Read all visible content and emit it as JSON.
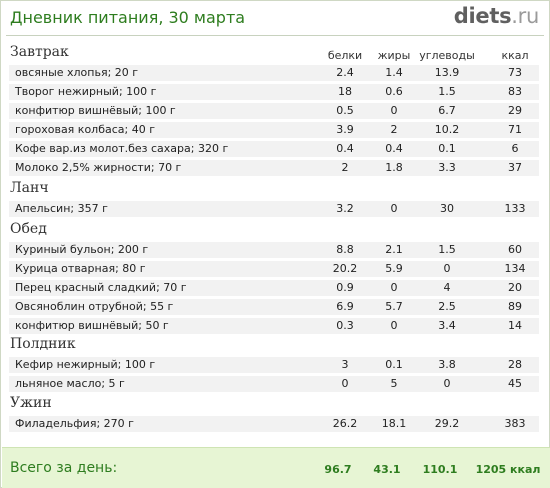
{
  "header": {
    "title": "Дневник питания, 30 марта",
    "logo_main": "diets",
    "logo_tld": ".ru"
  },
  "columns": [
    "белки",
    "жиры",
    "углеводы",
    "ккал"
  ],
  "meals": [
    {
      "name": "Завтрак",
      "items": [
        {
          "name": "овсяные хлопья; 20 г",
          "protein": "2.4",
          "fat": "1.4",
          "carbs": "13.9",
          "kcal": "73"
        },
        {
          "name": "Творог нежирный; 100 г",
          "protein": "18",
          "fat": "0.6",
          "carbs": "1.5",
          "kcal": "83"
        },
        {
          "name": "конфитюр вишнёвый; 100 г",
          "protein": "0.5",
          "fat": "0",
          "carbs": "6.7",
          "kcal": "29"
        },
        {
          "name": "гороховая колбаса; 40 г",
          "protein": "3.9",
          "fat": "2",
          "carbs": "10.2",
          "kcal": "71"
        },
        {
          "name": "Кофе вар.из молот.без сахара; 320 г",
          "protein": "0.4",
          "fat": "0.4",
          "carbs": "0.1",
          "kcal": "6"
        },
        {
          "name": "Молоко 2,5% жирности; 70 г",
          "protein": "2",
          "fat": "1.8",
          "carbs": "3.3",
          "kcal": "37"
        }
      ]
    },
    {
      "name": "Ланч",
      "items": [
        {
          "name": "Апельсин; 357 г",
          "protein": "3.2",
          "fat": "0",
          "carbs": "30",
          "kcal": "133"
        }
      ]
    },
    {
      "name": "Обед",
      "items": [
        {
          "name": "Куриный бульон; 200 г",
          "protein": "8.8",
          "fat": "2.1",
          "carbs": "1.5",
          "kcal": "60"
        },
        {
          "name": "Курица отварная; 80 г",
          "protein": "20.2",
          "fat": "5.9",
          "carbs": "0",
          "kcal": "134"
        },
        {
          "name": "Перец красный сладкий; 70 г",
          "protein": "0.9",
          "fat": "0",
          "carbs": "4",
          "kcal": "20"
        },
        {
          "name": "Овсяноблин отрубной; 55 г",
          "protein": "6.9",
          "fat": "5.7",
          "carbs": "2.5",
          "kcal": "89"
        },
        {
          "name": "конфитюр вишнёвый; 50 г",
          "protein": "0.3",
          "fat": "0",
          "carbs": "3.4",
          "kcal": "14"
        }
      ]
    },
    {
      "name": "Полдник",
      "items": [
        {
          "name": "Кефир нежирный; 100 г",
          "protein": "3",
          "fat": "0.1",
          "carbs": "3.8",
          "kcal": "28"
        },
        {
          "name": "льняное масло; 5 г",
          "protein": "0",
          "fat": "5",
          "carbs": "0",
          "kcal": "45"
        }
      ]
    },
    {
      "name": "Ужин",
      "items": [
        {
          "name": "Филадельфия; 270 г",
          "protein": "26.2",
          "fat": "18.1",
          "carbs": "29.2",
          "kcal": "383"
        }
      ]
    }
  ],
  "total": {
    "label": "Всего за день:",
    "protein": "96.7",
    "fat": "43.1",
    "carbs": "110.1",
    "kcal": "1205 ккал"
  },
  "colors": {
    "accent": "#2e7d1f",
    "total_bg": "#e7f5d4",
    "row_bg": "#f2f2f2"
  }
}
